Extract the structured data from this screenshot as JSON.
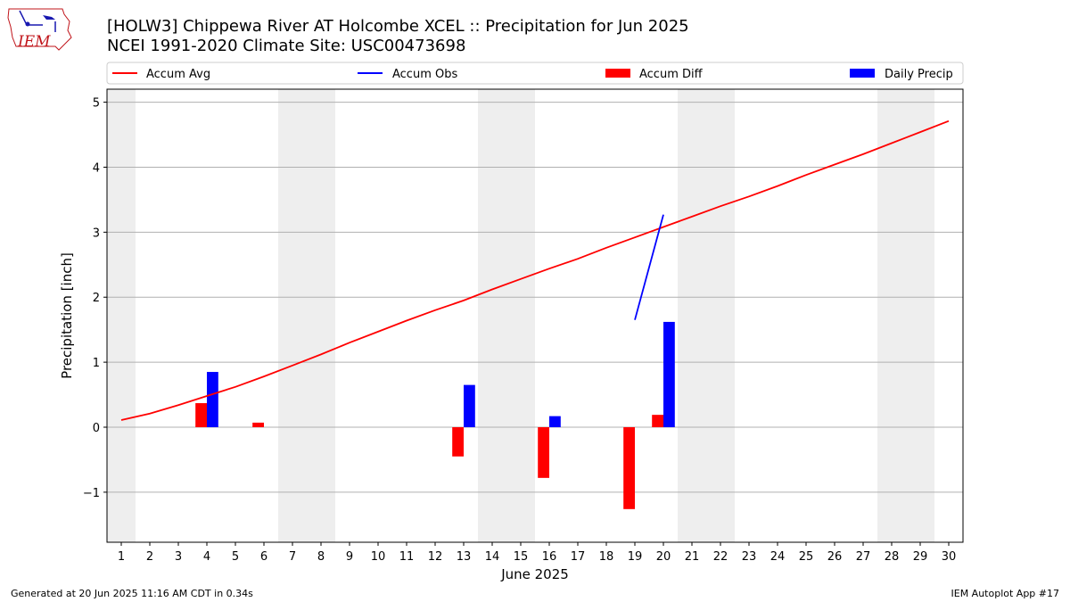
{
  "title_line1": "[HOLW3] Chippewa River AT Holcombe XCEL :: Precipitation for Jun 2025",
  "title_line2": "NCEI 1991-2020 Climate Site: USC00473698",
  "logo": {
    "text": "IEM",
    "icon": "iowa-state-outline-icon",
    "color": "#c0141a"
  },
  "footer": {
    "generated": "Generated at 20 Jun 2025 11:16 AM CDT in 0.34s",
    "app": "IEM Autoplot App #17"
  },
  "chart_data": {
    "type": "bar",
    "xlabel": "June 2025",
    "ylabel": "Precipitation [inch]",
    "xlim": [
      0.5,
      30.5
    ],
    "ylim": [
      -1.77,
      5.2
    ],
    "x_ticks": [
      1,
      2,
      3,
      4,
      5,
      6,
      7,
      8,
      9,
      10,
      11,
      12,
      13,
      14,
      15,
      16,
      17,
      18,
      19,
      20,
      21,
      22,
      23,
      24,
      25,
      26,
      27,
      28,
      29,
      30
    ],
    "y_ticks": [
      -1,
      0,
      1,
      2,
      3,
      4,
      5
    ],
    "y_tick_labels": [
      "−1",
      "0",
      "1",
      "2",
      "3",
      "4",
      "5"
    ],
    "grid": "horizontal",
    "weekend_shading": [
      [
        0.5,
        1.5
      ],
      [
        6.5,
        8.5
      ],
      [
        13.5,
        15.5
      ],
      [
        20.5,
        22.5
      ],
      [
        27.5,
        29.5
      ]
    ],
    "legend": {
      "placement": "top",
      "entries": [
        {
          "name": "Accum Avg",
          "kind": "line",
          "color": "#ff0000"
        },
        {
          "name": "Accum Obs",
          "kind": "line",
          "color": "#0000ff"
        },
        {
          "name": "Accum Diff",
          "kind": "bar",
          "color": "#ff0000"
        },
        {
          "name": "Daily Precip",
          "kind": "bar",
          "color": "#0000ff"
        }
      ]
    },
    "series": [
      {
        "name": "Accum Avg",
        "kind": "line",
        "color": "#ff0000",
        "x": [
          1,
          2,
          3,
          4,
          5,
          6,
          7,
          8,
          9,
          10,
          11,
          12,
          13,
          14,
          15,
          16,
          17,
          18,
          19,
          20,
          21,
          22,
          23,
          24,
          25,
          26,
          27,
          28,
          29,
          30
        ],
        "values": [
          0.11,
          0.21,
          0.34,
          0.48,
          0.62,
          0.78,
          0.95,
          1.12,
          1.3,
          1.47,
          1.64,
          1.8,
          1.95,
          2.12,
          2.28,
          2.44,
          2.59,
          2.76,
          2.92,
          3.08,
          3.24,
          3.4,
          3.55,
          3.71,
          3.88,
          4.04,
          4.2,
          4.37,
          4.54,
          4.71
        ]
      },
      {
        "name": "Accum Obs",
        "kind": "line",
        "color": "#0000ff",
        "x": [
          19,
          20
        ],
        "values": [
          1.65,
          3.27
        ]
      },
      {
        "name": "Accum Diff",
        "kind": "bar",
        "color": "#ff0000",
        "x": [
          4,
          6,
          13,
          16,
          19,
          20
        ],
        "values": [
          0.37,
          0.07,
          -0.45,
          -0.78,
          -1.26,
          0.19
        ]
      },
      {
        "name": "Daily Precip",
        "kind": "bar",
        "color": "#0000ff",
        "x": [
          4,
          13,
          16,
          20
        ],
        "values": [
          0.85,
          0.65,
          0.17,
          1.62
        ]
      }
    ]
  }
}
